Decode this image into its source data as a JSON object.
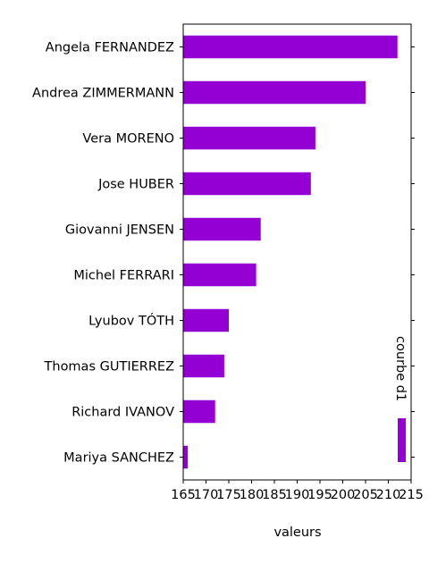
{
  "chart_data": {
    "type": "bar",
    "orientation": "horizontal",
    "categories": [
      "Angela FERNANDEZ",
      "Andrea ZIMMERMANN",
      "Vera MORENO",
      "Jose HUBER",
      "Giovanni JENSEN",
      "Michel FERRARI",
      "Lyubov TÓTH",
      "Thomas GUTIERREZ",
      "Richard IVANOV",
      "Mariya SANCHEZ"
    ],
    "series": [
      {
        "name": "courbe d1",
        "color": "#9400d3",
        "values": [
          212,
          205,
          194,
          193,
          182,
          181,
          175,
          174,
          172,
          166
        ]
      }
    ],
    "xlabel": "valeurs",
    "xlim": [
      165,
      215
    ],
    "xticks": [
      "165",
      "170",
      "175",
      "180",
      "185",
      "190",
      "195",
      "200",
      "205",
      "210",
      "215"
    ],
    "legend": {
      "position": "bottom-right",
      "orientation": "vertical",
      "label": "courbe d1"
    },
    "grid": false
  }
}
